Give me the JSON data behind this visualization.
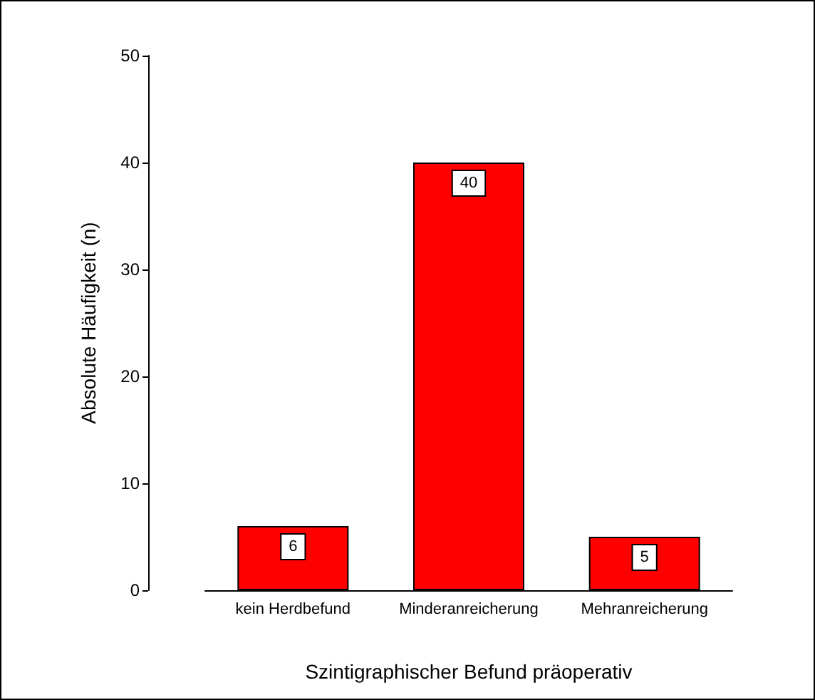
{
  "chart_data": {
    "type": "bar",
    "xlabel": "Szintigraphischer Befund präoperativ",
    "ylabel": "Absolute Häufigkeit (n)",
    "categories": [
      "kein Herdbefund",
      "Minderanreicherung",
      "Mehranreicherung"
    ],
    "values": [
      6,
      40,
      5
    ],
    "color": "#ff0000",
    "ylim": [
      0,
      50
    ],
    "yticks": [
      0,
      10,
      20,
      30,
      40,
      50
    ],
    "grid": false,
    "data_labels": true
  }
}
